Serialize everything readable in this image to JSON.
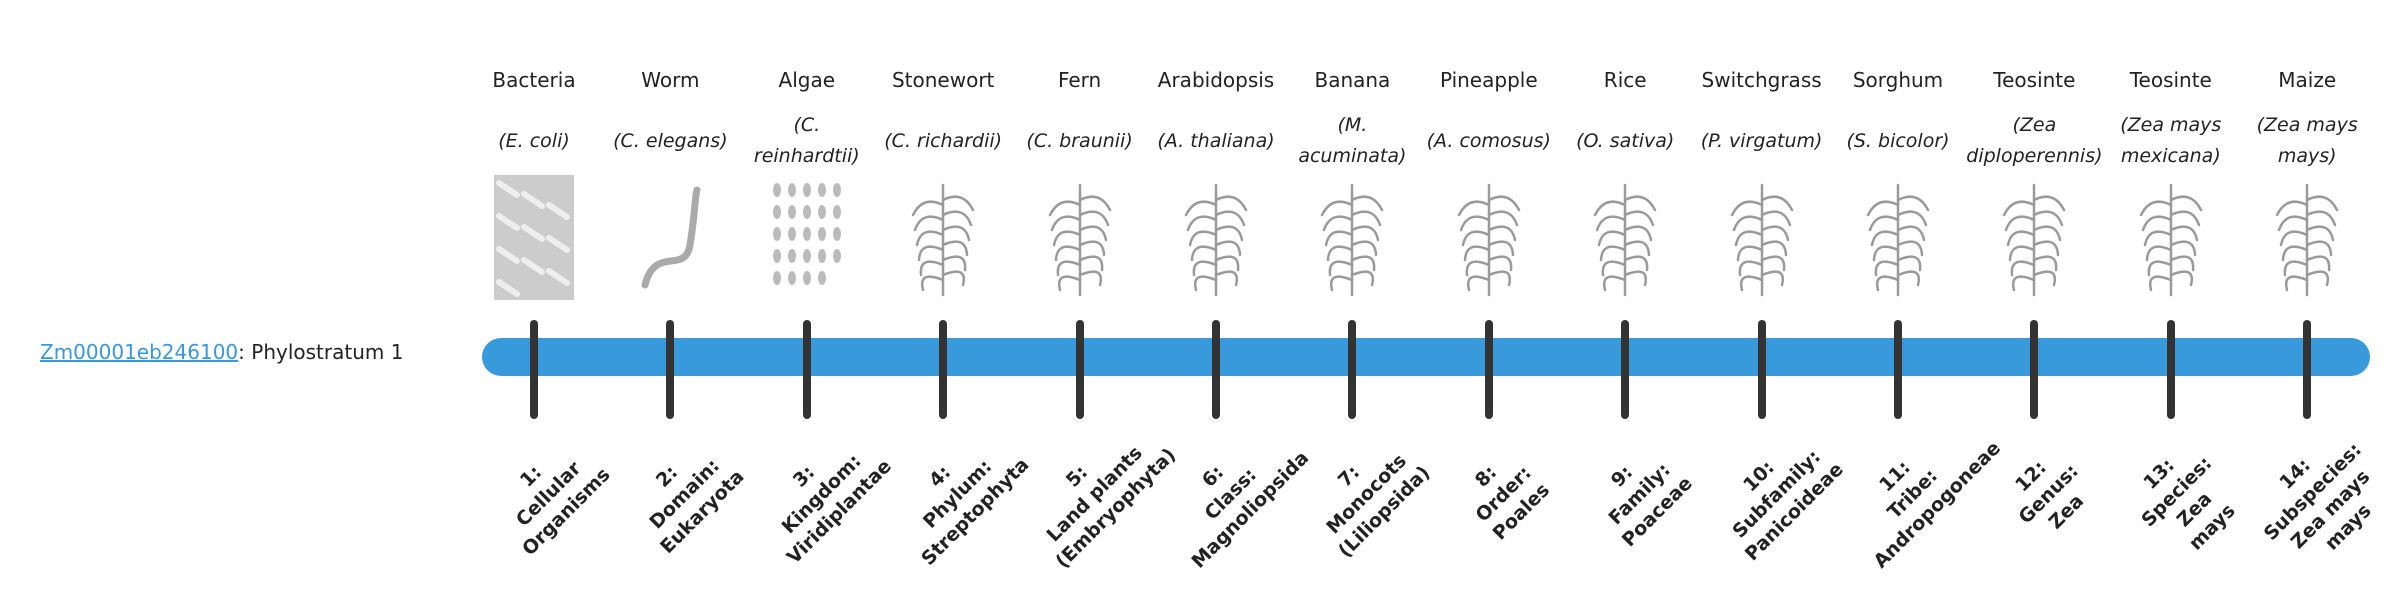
{
  "gene": {
    "id": "Zm00001eb246100",
    "suffix": ": Phylostratum 1"
  },
  "colors": {
    "bar": "#3899db",
    "tick": "#333333",
    "link": "#3a96dd"
  },
  "strata": [
    {
      "name": "Bacteria",
      "species": "(E. coli)",
      "icon": "bacteria-illustration",
      "label": [
        "1:",
        "Cellular",
        "Organisms"
      ]
    },
    {
      "name": "Worm",
      "species": "(C. elegans)",
      "icon": "worm-illustration",
      "label": [
        "2:",
        "Domain:",
        "Eukaryota"
      ]
    },
    {
      "name": "Algae",
      "species": "(C. reinhardtii)",
      "icon": "algae-illustration",
      "label": [
        "3:",
        "Kingdom:",
        "Viridiplantae"
      ]
    },
    {
      "name": "Stonewort",
      "species": "(C. richardii)",
      "icon": "stonewort-illustration",
      "label": [
        "4:",
        "Phylum:",
        "Streptophyta"
      ]
    },
    {
      "name": "Fern",
      "species": "(C. braunii)",
      "icon": "fern-illustration",
      "label": [
        "5:",
        "Land plants",
        "(Embryophyta)"
      ]
    },
    {
      "name": "Arabidopsis",
      "species": "(A. thaliana)",
      "icon": "arabidopsis-illustration",
      "label": [
        "6:",
        "Class:",
        "Magnoliopsida"
      ]
    },
    {
      "name": "Banana",
      "species": "(M. acuminata)",
      "icon": "banana-illustration",
      "label": [
        "7:",
        "Monocots",
        "(Liliopsida)"
      ]
    },
    {
      "name": "Pineapple",
      "species": "(A. comosus)",
      "icon": "pineapple-illustration",
      "label": [
        "8:",
        "Order:",
        "Poales"
      ]
    },
    {
      "name": "Rice",
      "species": "(O. sativa)",
      "icon": "rice-illustration",
      "label": [
        "9:",
        "Family:",
        "Poaceae"
      ]
    },
    {
      "name": "Switchgrass",
      "species": "(P. virgatum)",
      "icon": "switchgrass-illustration",
      "label": [
        "10:",
        "Subfamily:",
        "Panicoideae"
      ]
    },
    {
      "name": "Sorghum",
      "species": "(S. bicolor)",
      "icon": "sorghum-illustration",
      "label": [
        "11:",
        "Tribe:",
        "Andropogoneae"
      ]
    },
    {
      "name": "Teosinte",
      "species": "(Zea diploperennis)",
      "icon": "teosinte-illustration",
      "label": [
        "12:",
        "Genus:",
        "Zea"
      ]
    },
    {
      "name": "Teosinte",
      "species": "(Zea mays mexicana)",
      "icon": "teosinte-illustration",
      "label": [
        "13:",
        "Species:",
        "Zea",
        "mays"
      ]
    },
    {
      "name": "Maize",
      "species": "(Zea mays mays)",
      "icon": "maize-illustration",
      "label": [
        "14:",
        "Subspecies:",
        "Zea mays",
        "mays"
      ]
    }
  ]
}
